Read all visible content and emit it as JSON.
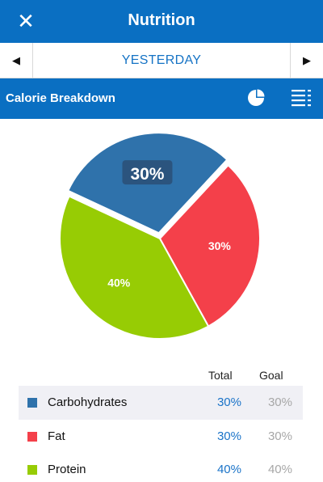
{
  "header": {
    "title": "Nutrition",
    "close_icon": "close-icon"
  },
  "datebar": {
    "date": "YESTERDAY",
    "prev_icon": "triangle-left-icon",
    "next_icon": "triangle-right-icon"
  },
  "section": {
    "title": "Calorie Breakdown",
    "icons": [
      "pie-chart-icon",
      "list-icon"
    ]
  },
  "chart_data": {
    "type": "pie",
    "categories": [
      "Carbohydrates",
      "Fat",
      "Protein"
    ],
    "values": [
      30,
      30,
      40
    ],
    "labels": [
      "30%",
      "30%",
      "40%"
    ],
    "colors": [
      "#2f72ab",
      "#f4404a",
      "#97cc04"
    ],
    "exploded": "Carbohydrates",
    "highlighted_label": "30%"
  },
  "legend": {
    "columns": {
      "total": "Total",
      "goal": "Goal"
    },
    "rows": [
      {
        "name": "Carbohydrates",
        "total": "30%",
        "goal": "30%",
        "color": "#2f72ab",
        "highlighted": true
      },
      {
        "name": "Fat",
        "total": "30%",
        "goal": "30%",
        "color": "#f4404a",
        "highlighted": false
      },
      {
        "name": "Protein",
        "total": "40%",
        "goal": "40%",
        "color": "#97cc04",
        "highlighted": false
      }
    ]
  }
}
